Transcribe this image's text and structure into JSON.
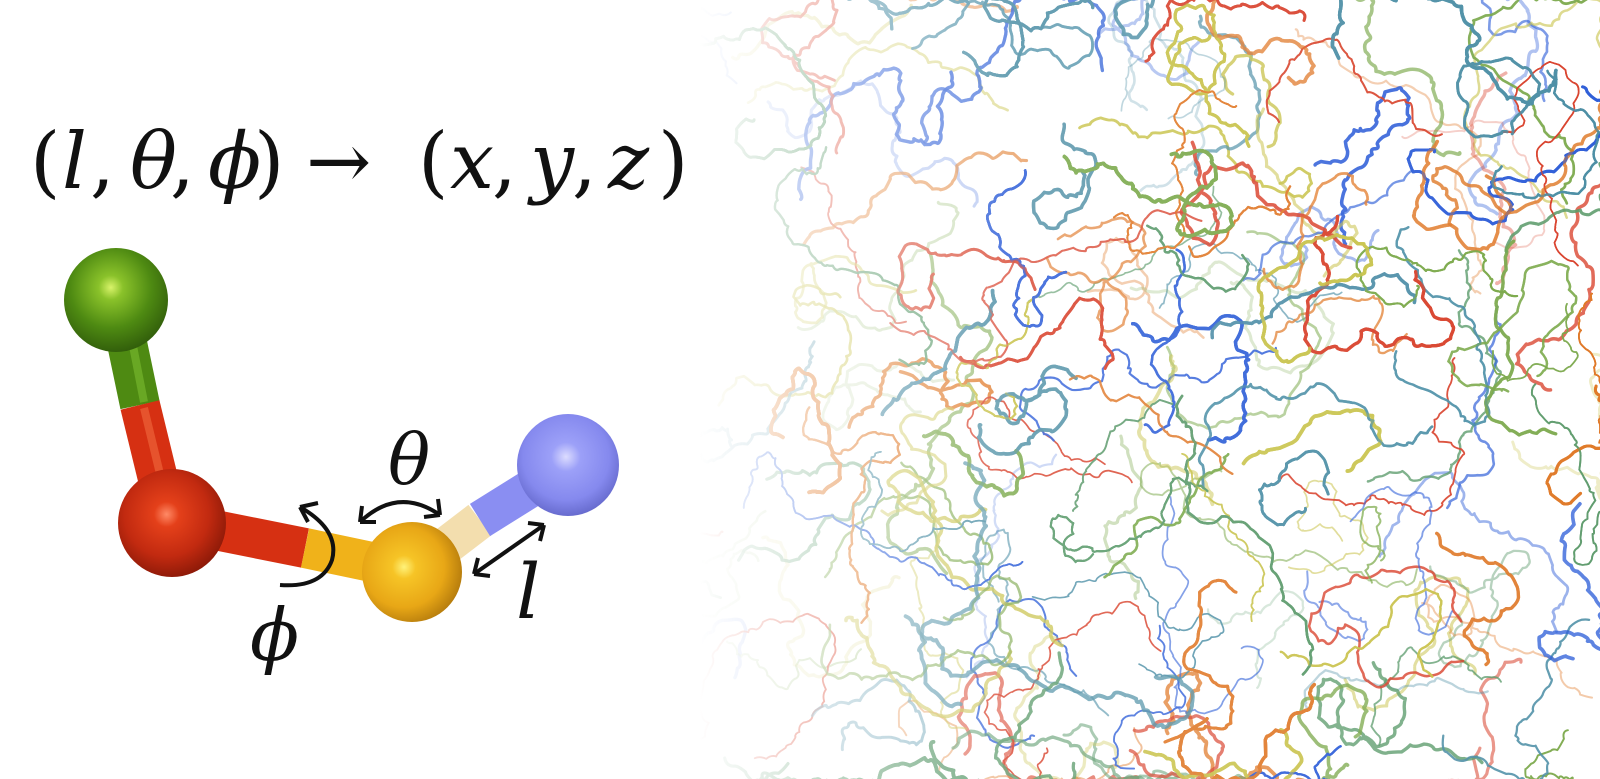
{
  "equation": {
    "open_paren_1": "(",
    "l": "l",
    "comma_1": ",",
    "theta": "θ",
    "comma_2": ",",
    "phi": "ϕ",
    "close_paren_1": ")",
    "arrow": "→",
    "open_paren_2": "(",
    "x": "x",
    "comma_3": ",",
    "y": "y",
    "comma_4": ",",
    "z": "z",
    "close_paren_2": ")"
  },
  "molecule": {
    "atoms": [
      {
        "name": "green-atom",
        "color": "#4e8a12"
      },
      {
        "name": "red-atom",
        "color": "#d42a12"
      },
      {
        "name": "yellow-atom",
        "color": "#f0b21a"
      },
      {
        "name": "blue-atom",
        "color": "#8a8ef2"
      }
    ],
    "bond_colors": {
      "green": "#4e8a12",
      "red": "#d63012",
      "yellow": "#f0b21a",
      "light_yellow": "#f3deae",
      "blue": "#8a8ef2"
    },
    "labels": {
      "theta": "θ",
      "phi": "ϕ",
      "l": "l"
    }
  },
  "protein_cloud": {
    "colors": [
      "#2f5fd8",
      "#4d8fa6",
      "#7aa84a",
      "#c8c24a",
      "#e07a2a",
      "#d8402a",
      "#5a9a6a"
    ]
  }
}
